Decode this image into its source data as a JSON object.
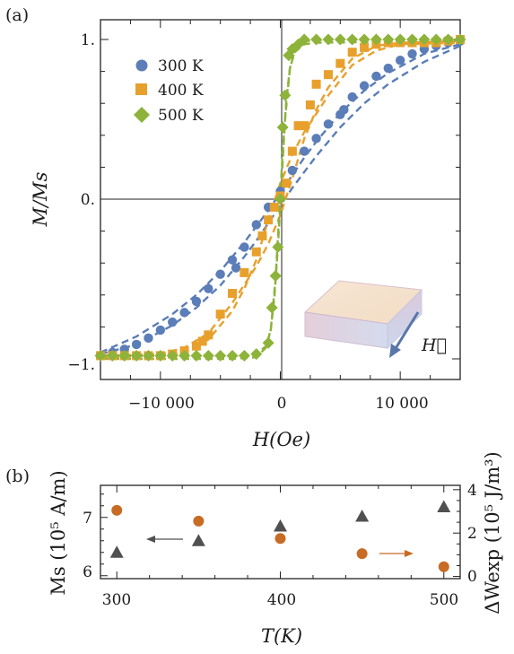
{
  "panel_a_label": "(a)",
  "panel_b_label": "(b)",
  "inset_field_label": "H⃗",
  "chart_data": [
    {
      "type": "scatter",
      "panel": "(a)",
      "xlabel": "H(Oe)",
      "ylabel": "M/Ms",
      "xlim": [
        -15000,
        15000
      ],
      "ylim": [
        -1.05,
        1.05
      ],
      "xticks": [
        -10000,
        0,
        10000
      ],
      "xtick_labels": [
        "−10 000",
        "0",
        "10 000"
      ],
      "yticks": [
        -1,
        0,
        1
      ],
      "ytick_labels": [
        "−1.",
        "0.",
        "1."
      ],
      "legend_position": "top-left",
      "series": [
        {
          "name": "300 K",
          "color": "#5b7db8",
          "marker": "circle",
          "x": [
            -15000,
            -14000,
            -13000,
            -12000,
            -11000,
            -10000,
            -9000,
            -8000,
            -7000,
            -6000,
            -5000,
            -4000,
            -3700,
            -3000,
            -2000,
            -1000,
            0,
            1000,
            2000,
            3000,
            4000,
            5000,
            5300,
            6000,
            7000,
            8000,
            9000,
            10000,
            11000,
            12000,
            13000,
            14000,
            15000
          ],
          "y": [
            -0.98,
            -0.96,
            -0.94,
            -0.91,
            -0.87,
            -0.82,
            -0.77,
            -0.71,
            -0.64,
            -0.56,
            -0.47,
            -0.38,
            -0.43,
            -0.3,
            -0.16,
            -0.05,
            0.05,
            0.18,
            0.3,
            0.38,
            0.47,
            0.53,
            0.56,
            0.64,
            0.71,
            0.77,
            0.82,
            0.87,
            0.91,
            0.94,
            0.96,
            0.98,
            0.99
          ],
          "curve_up_x": [
            -15000,
            -12000,
            -9000,
            -7000,
            -5000,
            -3000,
            -2000,
            -1000,
            0,
            1000,
            2000,
            3000,
            5000,
            7000,
            9000,
            12000,
            15000
          ],
          "curve_up_y": [
            -0.97,
            -0.91,
            -0.79,
            -0.68,
            -0.54,
            -0.36,
            -0.26,
            -0.15,
            -0.04,
            0.07,
            0.17,
            0.27,
            0.45,
            0.6,
            0.72,
            0.86,
            0.96
          ],
          "curve_down_x": [
            -15000,
            -12000,
            -9000,
            -7000,
            -5000,
            -3000,
            -2000,
            -1000,
            0,
            1000,
            2000,
            3000,
            5000,
            7000,
            9000,
            12000,
            15000
          ],
          "curve_down_y": [
            -0.96,
            -0.86,
            -0.72,
            -0.6,
            -0.45,
            -0.27,
            -0.17,
            -0.07,
            0.04,
            0.15,
            0.26,
            0.36,
            0.54,
            0.68,
            0.79,
            0.91,
            0.97
          ]
        },
        {
          "name": "400 K",
          "color": "#e8a02c",
          "marker": "square",
          "x": [
            -15000,
            -14000,
            -13000,
            -12000,
            -11000,
            -10000,
            -9000,
            -8000,
            -7000,
            -6500,
            -6000,
            -5000,
            -4000,
            -3000,
            -2000,
            -1500,
            -1000,
            -500,
            0,
            500,
            1000,
            1500,
            2000,
            2500,
            3000,
            4000,
            5000,
            6000,
            7000,
            8000,
            9000,
            10000,
            11000,
            12000,
            13000,
            14000,
            15000
          ],
          "y": [
            -0.98,
            -0.98,
            -0.98,
            -0.98,
            -0.98,
            -0.98,
            -0.97,
            -0.95,
            -0.92,
            -0.89,
            -0.85,
            -0.72,
            -0.59,
            -0.46,
            -0.33,
            -0.23,
            -0.13,
            -0.05,
            0.02,
            0.1,
            0.3,
            0.46,
            0.46,
            0.59,
            0.72,
            0.78,
            0.85,
            0.92,
            0.95,
            0.97,
            0.98,
            0.98,
            0.98,
            0.98,
            0.98,
            0.99,
            1.0
          ],
          "curve_up_x": [
            -15000,
            -10000,
            -8000,
            -6000,
            -4000,
            -2000,
            -1000,
            0,
            1000,
            2000,
            3000,
            4000,
            6000,
            8000,
            10000,
            15000
          ],
          "curve_up_y": [
            -0.98,
            -0.97,
            -0.93,
            -0.84,
            -0.65,
            -0.42,
            -0.28,
            -0.1,
            0.13,
            0.38,
            0.56,
            0.7,
            0.88,
            0.96,
            0.98,
            0.99
          ],
          "curve_down_x": [
            -15000,
            -10000,
            -8000,
            -6000,
            -4000,
            -3000,
            -2000,
            -1000,
            0,
            1000,
            2000,
            4000,
            6000,
            8000,
            10000,
            15000
          ],
          "curve_down_y": [
            -0.99,
            -0.98,
            -0.96,
            -0.88,
            -0.7,
            -0.56,
            -0.38,
            -0.13,
            0.1,
            0.28,
            0.42,
            0.65,
            0.84,
            0.93,
            0.97,
            0.98
          ]
        },
        {
          "name": "500 K",
          "color": "#8db33a",
          "marker": "diamond",
          "x": [
            -15000,
            -14000,
            -13000,
            -12000,
            -11000,
            -10000,
            -9000,
            -8000,
            -7000,
            -6000,
            -5000,
            -4000,
            -3000,
            -2000,
            -1000,
            -700,
            -400,
            -200,
            0,
            200,
            400,
            700,
            1000,
            1500,
            2000,
            3000,
            4000,
            5000,
            6000,
            7000,
            8000,
            9000,
            10000,
            11000,
            12000,
            13000,
            14000,
            15000
          ],
          "y": [
            -0.98,
            -0.98,
            -0.98,
            -0.98,
            -0.98,
            -0.98,
            -0.98,
            -0.98,
            -0.98,
            -0.98,
            -0.98,
            -0.98,
            -0.98,
            -0.97,
            -0.9,
            -0.68,
            -0.48,
            -0.3,
            0.0,
            0.45,
            0.65,
            0.9,
            0.94,
            0.97,
            1.0,
            1.0,
            1.0,
            1.0,
            1.0,
            1.0,
            1.0,
            1.0,
            1.0,
            1.0,
            1.0,
            1.0,
            1.0,
            1.0
          ],
          "curve_up_x": [
            -15000,
            -3000,
            -2000,
            -1200,
            -800,
            -400,
            -100,
            200,
            500,
            800,
            1200,
            2000,
            4000,
            15000
          ],
          "curve_up_y": [
            -0.98,
            -0.98,
            -0.97,
            -0.92,
            -0.82,
            -0.5,
            -0.1,
            0.3,
            0.62,
            0.82,
            0.93,
            0.99,
            1.0,
            1.0
          ],
          "curve_down_x": [
            -15000,
            -4000,
            -2000,
            -1200,
            -800,
            -500,
            -200,
            100,
            400,
            800,
            1200,
            2000,
            3000,
            15000
          ],
          "curve_down_y": [
            -1.0,
            -1.0,
            -0.99,
            -0.93,
            -0.82,
            -0.62,
            -0.3,
            0.1,
            0.5,
            0.82,
            0.92,
            0.97,
            0.98,
            0.99
          ]
        }
      ]
    },
    {
      "type": "scatter",
      "panel": "(b)",
      "xlabel": "T(K)",
      "ylabel": "Ms (10⁵ A/m)",
      "y2label": "ΔWexp (10⁵ J/m³)",
      "xlim": [
        290,
        510
      ],
      "xticks": [
        300,
        400,
        500
      ],
      "ylim": [
        5.95,
        7.55
      ],
      "yticks": [
        6,
        7
      ],
      "y2lim": [
        -0.1,
        4.2
      ],
      "y2ticks": [
        0,
        2,
        4
      ],
      "series": [
        {
          "name": "Ms",
          "axis": "left",
          "color": "#505050",
          "marker": "triangle",
          "x": [
            300,
            350,
            400,
            450,
            500
          ],
          "y": [
            6.4,
            6.6,
            6.85,
            7.02,
            7.18
          ]
        },
        {
          "name": "ΔWexp",
          "axis": "right",
          "color": "#c76b25",
          "marker": "circle",
          "x": [
            300,
            350,
            400,
            450,
            500
          ],
          "y": [
            3.05,
            2.55,
            1.75,
            1.05,
            0.45
          ]
        }
      ]
    }
  ]
}
